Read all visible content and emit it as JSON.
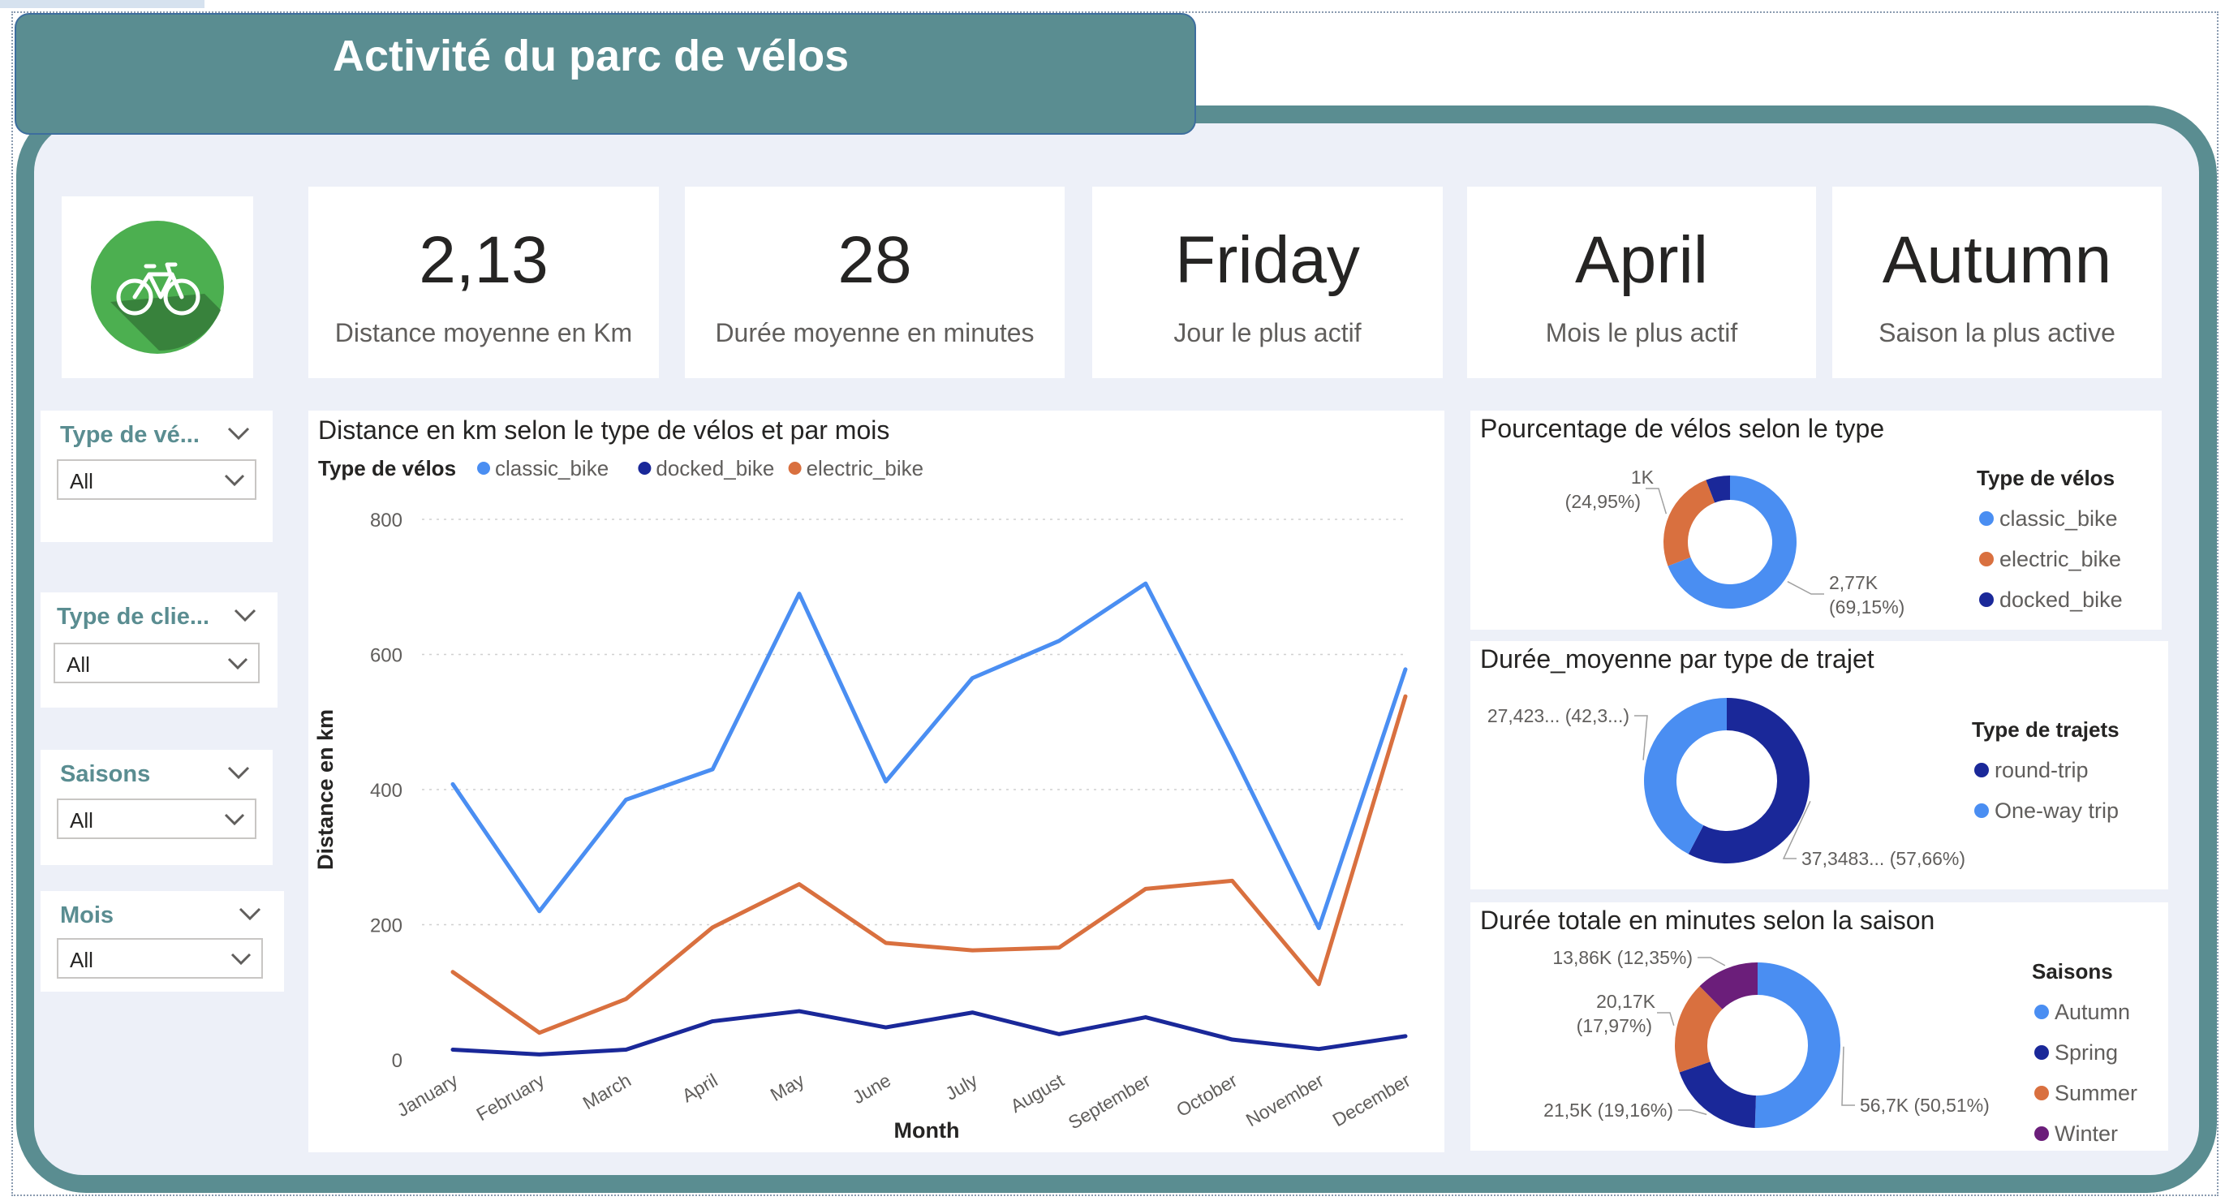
{
  "header": {
    "title": "Activité du parc de vélos"
  },
  "kpis": [
    {
      "value": "2,13",
      "label": "Distance moyenne en Km"
    },
    {
      "value": "28",
      "label": "Durée moyenne  en minutes"
    },
    {
      "value": "Friday",
      "label": "Jour le plus actif"
    },
    {
      "value": "April",
      "label": "Mois le plus actif"
    },
    {
      "value": "Autumn",
      "label": "Saison la plus active"
    }
  ],
  "slicers": [
    {
      "title": "Type de vé...",
      "value": "All"
    },
    {
      "title": "Type de clie...",
      "value": "All"
    },
    {
      "title": "Saisons",
      "value": "All"
    },
    {
      "title": "Mois",
      "value": "All"
    }
  ],
  "icons": {
    "logo": "bicycle-icon",
    "dropdown": "chevron-down-icon"
  },
  "colors": {
    "classic_bike": "#4a8ef2",
    "docked_bike": "#1a2899",
    "electric_bike": "#d9703f",
    "winter": "#6b1e7a",
    "frame": "#5a8d91"
  },
  "chart_data": [
    {
      "type": "line",
      "title": "Distance en km selon le type de vélos et par mois",
      "legend_title": "Type de vélos",
      "xlabel": "Month",
      "ylabel": "Distance en km",
      "ylim": [
        0,
        800
      ],
      "yticks": [
        "0",
        "200",
        "400",
        "600",
        "800"
      ],
      "categories": [
        "January",
        "February",
        "March",
        "April",
        "May",
        "June",
        "July",
        "August",
        "September",
        "October",
        "November",
        "December"
      ],
      "series": [
        {
          "name": "classic_bike",
          "values": [
            408,
            220,
            385,
            430,
            690,
            412,
            565,
            620,
            705,
            455,
            195,
            578
          ]
        },
        {
          "name": "docked_bike",
          "values": [
            15,
            8,
            15,
            57,
            72,
            48,
            70,
            38,
            63,
            30,
            16,
            35
          ]
        },
        {
          "name": "electric_bike",
          "values": [
            130,
            40,
            90,
            196,
            260,
            173,
            162,
            166,
            253,
            265,
            112,
            538
          ]
        }
      ]
    },
    {
      "type": "pie",
      "title": "Pourcentage de vélos selon le type",
      "legend_title": "Type de vélos",
      "legend": [
        "classic_bike",
        "electric_bike",
        "docked_bike"
      ],
      "slices": [
        {
          "name": "classic_bike",
          "value": 2770,
          "label": "2,77K",
          "pct": "(69,15%)"
        },
        {
          "name": "electric_bike",
          "value": 1000,
          "label": "1K",
          "pct": "(24,95%)"
        },
        {
          "name": "docked_bike",
          "value": 236,
          "label": "",
          "pct": ""
        }
      ]
    },
    {
      "type": "pie",
      "title": "Durée_moyenne par type de trajet",
      "legend_title": "Type de trajets",
      "legend": [
        "round-trip",
        "One-way trip"
      ],
      "slices": [
        {
          "name": "round-trip",
          "value": 37.3483,
          "label": "37,3483... (57,66%)"
        },
        {
          "name": "One-way trip",
          "value": 27.423,
          "label": "27,423... (42,3...)"
        }
      ]
    },
    {
      "type": "pie",
      "title": "Durée totale en minutes selon la saison",
      "legend_title": "Saisons",
      "legend": [
        "Autumn",
        "Spring",
        "Summer",
        "Winter"
      ],
      "slices": [
        {
          "name": "Autumn",
          "value": 56.7,
          "label": "56,7K (50,51%)"
        },
        {
          "name": "Spring",
          "value": 21.5,
          "label": "21,5K (19,16%)"
        },
        {
          "name": "Summer",
          "value": 20.17,
          "label": "20,17K",
          "pct": "(17,97%)"
        },
        {
          "name": "Winter",
          "value": 13.86,
          "label": "13,86K (12,35%)"
        }
      ]
    }
  ]
}
